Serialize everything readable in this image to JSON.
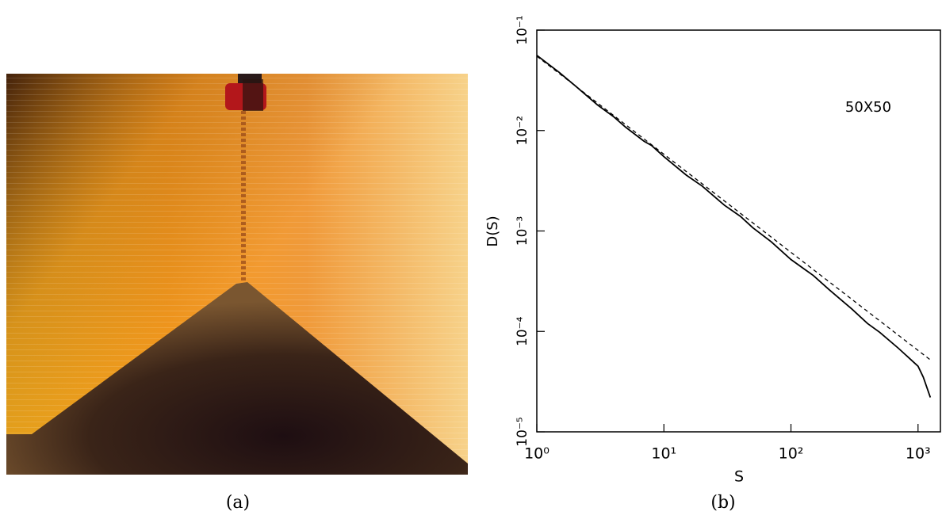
{
  "figure": {
    "captions": [
      "(a)",
      "(b)"
    ]
  },
  "chart_data": {
    "type": "line",
    "xlabel": "S",
    "ylabel": "D(S)",
    "annotation": "50X50",
    "log_x": true,
    "log_y": true,
    "grid": false,
    "xlim": [
      1,
      1500
    ],
    "ylim": [
      1e-05,
      0.1
    ],
    "xticks": [
      {
        "value": 1,
        "label": "10⁰"
      },
      {
        "value": 10,
        "label": "10¹"
      },
      {
        "value": 100,
        "label": "10²"
      },
      {
        "value": 1000,
        "label": "10³"
      }
    ],
    "yticks": [
      {
        "value": 1e-05,
        "label": "10⁻⁵"
      },
      {
        "value": 0.0001,
        "label": "10⁻⁴"
      },
      {
        "value": 0.001,
        "label": "10⁻³"
      },
      {
        "value": 0.01,
        "label": "10⁻²"
      },
      {
        "value": 0.1,
        "label": "10⁻¹"
      }
    ],
    "series": [
      {
        "color": "#000000",
        "dash": false,
        "x": [
          1,
          1.5,
          2,
          3,
          4,
          5,
          7,
          8,
          10,
          15,
          20,
          30,
          40,
          50,
          70,
          100,
          150,
          200,
          300,
          400,
          500,
          700,
          1000,
          1100,
          1250
        ],
        "values": [
          0.056,
          0.038,
          0.028,
          0.018,
          0.0138,
          0.0108,
          0.0078,
          0.0071,
          0.0055,
          0.0036,
          0.0028,
          0.0018,
          0.0014,
          0.00108,
          0.00078,
          0.00052,
          0.00036,
          0.00026,
          0.000168,
          0.00012,
          9.8e-05,
          6.8e-05,
          4.5e-05,
          3.5e-05,
          2.2e-05
        ]
      },
      {
        "color": "#000000",
        "dash": true,
        "x": [
          1,
          1250
        ],
        "values": [
          0.055,
          5.2e-05
        ]
      }
    ]
  }
}
